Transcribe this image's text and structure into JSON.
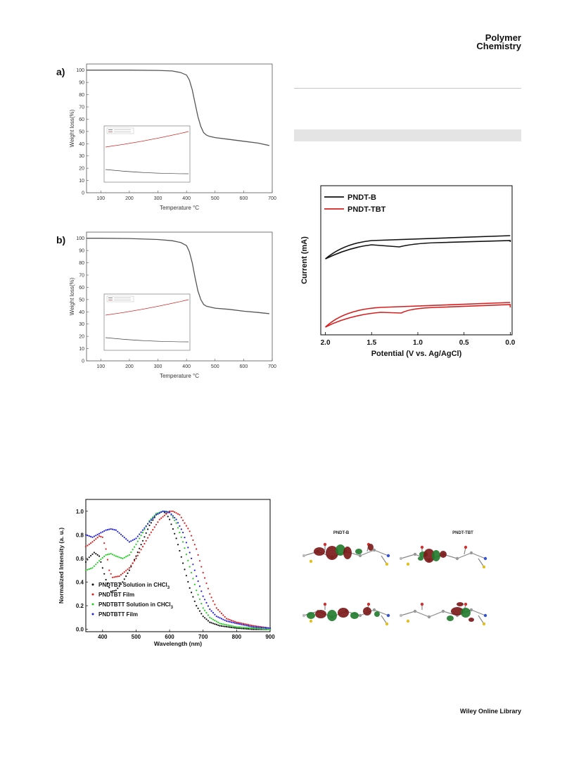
{
  "header": {
    "journal_line1": "Polymer",
    "journal_line2": "Chemistry"
  },
  "footer": {
    "publisher": "Wiley Online Library"
  },
  "tga_labels": {
    "a": "a)",
    "b": "b)",
    "ylabel": "Weight loss(%)",
    "xlabel": "Temperature °C"
  },
  "cv_labels": {
    "ylabel": "Current (mA)",
    "xlabel": "Potential (V vs. Ag/AgCl)"
  },
  "abs_labels": {
    "ylabel": "Normalized Intensity (a. u.)",
    "xlabel": "Wavelength (nm)"
  },
  "dft_labels": {
    "left": "PNDT-B",
    "right": "PNDT-TBT"
  },
  "colors": {
    "black": "#111111",
    "red": "#d62020",
    "green": "#22cc22",
    "blue": "#2222dd",
    "tga_line": "#555555"
  },
  "chart_data": [
    {
      "type": "line",
      "panel": "a",
      "xlabel": "Temperature °C",
      "ylabel": "Weight loss(%)",
      "xlim": [
        50,
        700
      ],
      "ylim": [
        0,
        105
      ],
      "xticks": [
        100,
        200,
        300,
        400,
        500,
        600,
        700
      ],
      "yticks": [
        0,
        10,
        20,
        30,
        40,
        50,
        60,
        70,
        80,
        90,
        100
      ],
      "series": [
        {
          "x": [
            50,
            100,
            200,
            300,
            350,
            380,
            400,
            410,
            420,
            430,
            440,
            450,
            460,
            470,
            480,
            500,
            550,
            600,
            650,
            690
          ],
          "y": [
            100,
            100,
            100,
            99.8,
            99.3,
            98,
            96,
            92,
            84,
            73,
            62,
            54,
            49,
            47,
            46,
            45,
            43.5,
            42,
            40.5,
            38.5
          ]
        }
      ]
    },
    {
      "type": "line",
      "panel": "b",
      "xlabel": "Temperature °C",
      "ylabel": "Weight loss(%)",
      "xlim": [
        50,
        700
      ],
      "ylim": [
        0,
        105
      ],
      "xticks": [
        100,
        200,
        300,
        400,
        500,
        600,
        700
      ],
      "yticks": [
        0,
        10,
        20,
        30,
        40,
        50,
        60,
        70,
        80,
        90,
        100
      ],
      "series": [
        {
          "x": [
            50,
            100,
            200,
            300,
            350,
            380,
            400,
            410,
            420,
            430,
            440,
            450,
            460,
            470,
            480,
            500,
            550,
            600,
            650,
            690
          ],
          "y": [
            100,
            100,
            99.8,
            99,
            98,
            96.5,
            94,
            89,
            80,
            68,
            57,
            50,
            46,
            44.5,
            44,
            43,
            42,
            40.5,
            39.5,
            38.5
          ]
        }
      ]
    },
    {
      "type": "line",
      "xlabel": "Potential (V vs. Ag/AgCl)",
      "ylabel": "Current (mA)",
      "xlim": [
        2.05,
        -0.02
      ],
      "xticks": [
        2.0,
        1.5,
        1.0,
        0.5,
        0.0
      ],
      "legend": "top-left",
      "series": [
        {
          "name": "PNDT-B"
        },
        {
          "name": "PNDT-TBT"
        }
      ]
    },
    {
      "type": "scatter",
      "xlabel": "Wavelength (nm)",
      "ylabel": "Normalized Intensity (a. u.)",
      "xlim": [
        350,
        900
      ],
      "ylim": [
        -0.02,
        1.1
      ],
      "xticks": [
        400,
        500,
        600,
        700,
        800,
        900
      ],
      "yticks": [
        0.0,
        0.2,
        0.4,
        0.6,
        0.8,
        1.0
      ],
      "legend": "bottom-left",
      "series": [
        {
          "name": "PNDTBT Solution in CHCl3",
          "x": [
            350,
            360,
            375,
            390,
            410,
            425,
            440,
            460,
            480,
            500,
            520,
            540,
            560,
            580,
            590,
            600,
            620,
            640,
            660,
            680,
            700,
            720,
            750,
            800,
            850,
            900
          ],
          "y": [
            0.57,
            0.61,
            0.65,
            0.62,
            0.42,
            0.32,
            0.33,
            0.4,
            0.5,
            0.62,
            0.75,
            0.88,
            0.97,
            1.0,
            0.98,
            0.93,
            0.77,
            0.56,
            0.35,
            0.2,
            0.11,
            0.06,
            0.03,
            0.01,
            0.0,
            0.0
          ]
        },
        {
          "name": "PNDTBT Film",
          "x": [
            350,
            370,
            390,
            400,
            410,
            420,
            430,
            450,
            480,
            500,
            540,
            570,
            600,
            610,
            630,
            660,
            680,
            700,
            720,
            740,
            770,
            800,
            850,
            900
          ],
          "y": [
            0.7,
            0.74,
            0.79,
            0.78,
            0.68,
            0.5,
            0.44,
            0.45,
            0.52,
            0.6,
            0.8,
            0.93,
            1.0,
            1.0,
            0.97,
            0.83,
            0.68,
            0.48,
            0.3,
            0.18,
            0.09,
            0.06,
            0.03,
            0.01
          ]
        },
        {
          "name": "PNDTBTT Solution in CHCl3",
          "x": [
            350,
            370,
            390,
            410,
            425,
            440,
            460,
            480,
            500,
            520,
            540,
            560,
            580,
            590,
            600,
            620,
            640,
            660,
            680,
            700,
            720,
            750,
            800,
            850,
            900
          ],
          "y": [
            0.5,
            0.52,
            0.58,
            0.63,
            0.64,
            0.62,
            0.6,
            0.63,
            0.72,
            0.82,
            0.92,
            0.98,
            1.0,
            1.0,
            0.99,
            0.9,
            0.74,
            0.53,
            0.33,
            0.18,
            0.1,
            0.05,
            0.02,
            0.01,
            0.0
          ]
        },
        {
          "name": "PNDTBTT Film",
          "x": [
            350,
            370,
            390,
            410,
            425,
            440,
            460,
            480,
            500,
            520,
            540,
            560,
            580,
            600,
            620,
            640,
            660,
            680,
            700,
            720,
            740,
            770,
            800,
            850,
            900
          ],
          "y": [
            0.8,
            0.78,
            0.81,
            0.84,
            0.85,
            0.84,
            0.79,
            0.74,
            0.77,
            0.84,
            0.91,
            0.97,
            1.0,
            0.99,
            0.93,
            0.82,
            0.65,
            0.45,
            0.28,
            0.17,
            0.11,
            0.07,
            0.05,
            0.02,
            0.01
          ]
        }
      ]
    }
  ]
}
